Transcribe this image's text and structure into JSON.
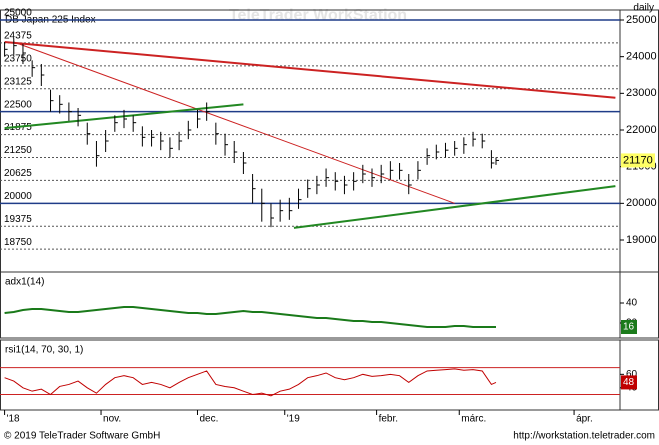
{
  "watermark": "TeleTrader WorkStation",
  "copyright": "© 2019 TeleTrader Software GmbH",
  "url": "http://workstation.teletrader.com",
  "chart_data": [
    {
      "type": "ohlc",
      "title": "DB Japan 225 Index",
      "period": "daily",
      "xlim": [
        -1,
        134
      ],
      "ylim": [
        18182,
        25218
      ],
      "yticks": [
        19000,
        20000,
        21000,
        22000,
        23000,
        24000,
        25000
      ],
      "x": [
        0,
        2,
        4,
        6,
        8,
        10,
        12,
        14,
        16,
        18,
        20,
        22,
        24,
        26,
        28,
        30,
        32,
        34,
        36,
        38,
        40,
        42,
        44,
        46,
        48,
        50,
        52,
        54,
        56,
        58,
        60,
        62,
        64,
        66,
        68,
        70,
        72,
        74,
        76,
        78,
        80,
        82,
        84,
        86,
        88,
        90,
        92,
        94,
        96,
        98,
        100,
        102,
        104,
        106,
        107
      ],
      "values": [
        24200,
        24300,
        24100,
        23700,
        23500,
        22800,
        22700,
        22500,
        22400,
        21900,
        21300,
        21700,
        22200,
        22300,
        22200,
        21800,
        21800,
        21700,
        21500,
        21700,
        22000,
        22300,
        22500,
        21900,
        21600,
        21400,
        21100,
        20400,
        20000,
        19600,
        19800,
        19800,
        20100,
        20400,
        20500,
        20700,
        20600,
        20500,
        20600,
        20800,
        20700,
        20800,
        20900,
        20900,
        20500,
        20900,
        21300,
        21400,
        21450,
        21500,
        21600,
        21750,
        21700,
        21100,
        21170
      ],
      "high": [
        24400,
        24500,
        24350,
        23900,
        23800,
        23100,
        22950,
        22750,
        22600,
        22200,
        21700,
        22000,
        22400,
        22550,
        22400,
        22100,
        22000,
        21950,
        21800,
        21950,
        22250,
        22550,
        22750,
        22200,
        21900,
        21700,
        21400,
        20800,
        20400,
        20000,
        20100,
        20150,
        20400,
        20650,
        20750,
        20950,
        20850,
        20750,
        20850,
        21050,
        20950,
        21050,
        21150,
        21100,
        20800,
        21150,
        21500,
        21600,
        21650,
        21700,
        21800,
        21950,
        21900,
        21450,
        21250
      ],
      "low": [
        24000,
        24050,
        23800,
        23450,
        23200,
        22500,
        22450,
        22250,
        22100,
        21600,
        21000,
        21400,
        21950,
        22050,
        21950,
        21550,
        21550,
        21450,
        21250,
        21450,
        21750,
        22050,
        22250,
        21600,
        21300,
        21100,
        20800,
        20000,
        19500,
        19350,
        19500,
        19550,
        19850,
        20150,
        20250,
        20450,
        20350,
        20250,
        20350,
        20550,
        20450,
        20550,
        20650,
        20650,
        20250,
        20650,
        21050,
        21200,
        21250,
        21300,
        21350,
        21550,
        21500,
        20950,
        21050
      ],
      "color": "#000000",
      "last_value": 21170,
      "last_color": "#ffff66",
      "levels": [
        {
          "value": 25000,
          "color": "#1f3c88",
          "dashed": false
        },
        {
          "value": 24375,
          "color": "#555555",
          "dashed": true
        },
        {
          "value": 23750,
          "color": "#555555",
          "dashed": true
        },
        {
          "value": 23125,
          "color": "#555555",
          "dashed": true
        },
        {
          "value": 22500,
          "color": "#1f3c88",
          "dashed": false
        },
        {
          "value": 21875,
          "color": "#555555",
          "dashed": true
        },
        {
          "value": 21250,
          "color": "#555555",
          "dashed": true
        },
        {
          "value": 20625,
          "color": "#555555",
          "dashed": true
        },
        {
          "value": 20000,
          "color": "#1f3c88",
          "dashed": false
        },
        {
          "value": 19375,
          "color": "#555555",
          "dashed": true
        },
        {
          "value": 18750,
          "color": "#555555",
          "dashed": true
        }
      ],
      "trendlines": [
        {
          "color": "#cc2222",
          "width": 2,
          "x": [
            0,
            133
          ],
          "y": [
            24400,
            22880
          ]
        },
        {
          "color": "#cc2222",
          "width": 1,
          "x": [
            2,
            98
          ],
          "y": [
            24400,
            20000
          ]
        },
        {
          "color": "#228822",
          "width": 2,
          "x": [
            0,
            52
          ],
          "y": [
            22050,
            22700
          ]
        },
        {
          "color": "#228822",
          "width": 2,
          "x": [
            63,
            133
          ],
          "y": [
            19330,
            20470
          ]
        }
      ]
    },
    {
      "type": "line",
      "title": "adx1(14)",
      "xlim": [
        -1,
        134
      ],
      "ylim": [
        7,
        69
      ],
      "yticks": [
        40,
        20
      ],
      "color": "#1a7a1a",
      "x": [
        0,
        2,
        4,
        6,
        8,
        10,
        12,
        14,
        16,
        18,
        20,
        22,
        24,
        26,
        28,
        30,
        32,
        34,
        36,
        38,
        40,
        42,
        44,
        46,
        48,
        50,
        52,
        54,
        56,
        58,
        60,
        62,
        64,
        66,
        68,
        70,
        72,
        74,
        76,
        78,
        80,
        82,
        84,
        86,
        88,
        90,
        92,
        94,
        96,
        98,
        100,
        102,
        104,
        106,
        107
      ],
      "values": [
        30,
        31,
        33,
        34,
        34,
        33,
        32,
        31,
        31,
        32,
        33,
        34,
        35,
        36,
        36,
        35,
        34,
        33,
        32,
        31,
        30,
        30,
        29,
        29,
        30,
        31,
        32,
        31,
        31,
        30,
        29,
        28,
        27,
        26,
        25,
        25,
        24,
        23,
        22,
        22,
        21,
        21,
        20,
        19,
        18,
        17,
        16,
        16,
        16,
        17,
        17,
        16,
        16,
        16,
        16
      ],
      "last_value": 16
    },
    {
      "type": "line",
      "title": "rsi1(14, 70, 30, 1)",
      "xlim": [
        -1,
        134
      ],
      "ylim": [
        10,
        108
      ],
      "yticks": [
        60,
        40
      ],
      "color": "#c00000",
      "levels": [
        70,
        30
      ],
      "level_color": "#cc2222",
      "x": [
        0,
        2,
        4,
        6,
        8,
        10,
        12,
        14,
        16,
        18,
        20,
        22,
        24,
        26,
        28,
        30,
        32,
        34,
        36,
        38,
        40,
        42,
        44,
        46,
        48,
        50,
        52,
        54,
        56,
        58,
        60,
        62,
        64,
        66,
        68,
        70,
        72,
        74,
        76,
        78,
        80,
        82,
        84,
        86,
        88,
        90,
        92,
        94,
        96,
        98,
        100,
        102,
        104,
        106,
        107
      ],
      "values": [
        55,
        50,
        40,
        35,
        38,
        30,
        42,
        45,
        50,
        40,
        32,
        45,
        55,
        58,
        55,
        45,
        48,
        45,
        40,
        48,
        55,
        60,
        65,
        45,
        42,
        40,
        35,
        30,
        32,
        28,
        35,
        38,
        45,
        55,
        58,
        62,
        55,
        52,
        55,
        60,
        57,
        58,
        60,
        58,
        48,
        58,
        65,
        66,
        67,
        68,
        66,
        67,
        65,
        45,
        48
      ],
      "last_value": 48,
      "xticks": [
        {
          "value": 0,
          "label": "'18"
        },
        {
          "value": 21,
          "label": "nov."
        },
        {
          "value": 42,
          "label": "dec."
        },
        {
          "value": 61,
          "label": "'19"
        },
        {
          "value": 81,
          "label": "febr."
        },
        {
          "value": 99,
          "label": "márc."
        },
        {
          "value": 124,
          "label": "ápr."
        }
      ]
    }
  ]
}
